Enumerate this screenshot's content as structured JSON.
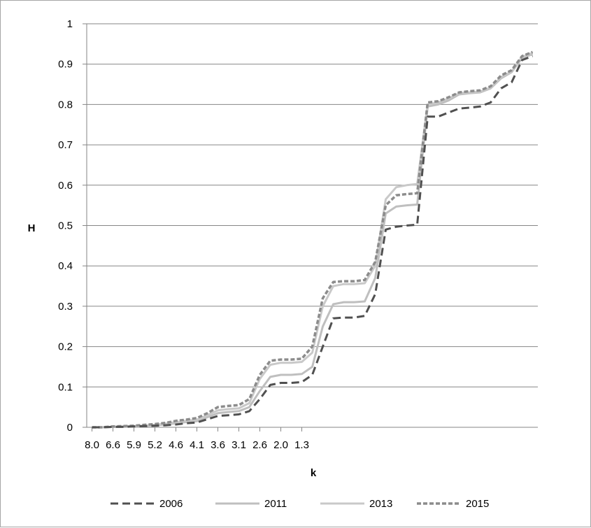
{
  "chart_data": {
    "type": "line",
    "xlabel": "k",
    "ylabel": "H",
    "ylim": [
      0,
      1
    ],
    "y_ticks": [
      "0",
      "0.1",
      "0.2",
      "0.3",
      "0.4",
      "0.5",
      "0.6",
      "0.7",
      "0.8",
      "0.9",
      "1"
    ],
    "x_tick_labels": [
      "8.0",
      "6.6",
      "5.9",
      "5.2",
      "4.6",
      "4.1",
      "3.6",
      "3.1",
      "2.6",
      "2.0",
      "1.3"
    ],
    "x_tick_every": 2,
    "grid": "horizontal",
    "legend_position": "bottom",
    "series": [
      {
        "name": "2006",
        "color": "#505050",
        "dash": "dash",
        "values": [
          0,
          0,
          0.001,
          0.001,
          0.002,
          0.003,
          0.004,
          0.005,
          0.007,
          0.01,
          0.012,
          0.02,
          0.028,
          0.03,
          0.032,
          0.04,
          0.07,
          0.105,
          0.11,
          0.11,
          0.112,
          0.13,
          0.2,
          0.27,
          0.272,
          0.272,
          0.276,
          0.33,
          0.49,
          0.497,
          0.5,
          0.502,
          0.77,
          0.77,
          0.78,
          0.79,
          0.792,
          0.795,
          0.805,
          0.84,
          0.855,
          0.91,
          0.92
        ]
      },
      {
        "name": "2011",
        "color": "#bfbfbf",
        "dash": "solid",
        "values": [
          0,
          0,
          0.001,
          0.001,
          0.002,
          0.003,
          0.005,
          0.007,
          0.01,
          0.013,
          0.015,
          0.025,
          0.035,
          0.038,
          0.04,
          0.05,
          0.09,
          0.125,
          0.13,
          0.13,
          0.132,
          0.15,
          0.25,
          0.305,
          0.31,
          0.31,
          0.312,
          0.37,
          0.53,
          0.547,
          0.55,
          0.552,
          0.795,
          0.8,
          0.81,
          0.825,
          0.828,
          0.83,
          0.84,
          0.865,
          0.88,
          0.915,
          0.925
        ]
      },
      {
        "name": "2013",
        "color": "#c9c9c9",
        "dash": "solid",
        "values": [
          0,
          0,
          0.001,
          0.002,
          0.003,
          0.004,
          0.006,
          0.009,
          0.013,
          0.016,
          0.019,
          0.03,
          0.042,
          0.045,
          0.047,
          0.06,
          0.12,
          0.155,
          0.16,
          0.16,
          0.162,
          0.185,
          0.3,
          0.35,
          0.355,
          0.355,
          0.357,
          0.4,
          0.565,
          0.595,
          0.6,
          0.603,
          0.8,
          0.805,
          0.815,
          0.828,
          0.83,
          0.832,
          0.842,
          0.868,
          0.882,
          0.918,
          0.928
        ]
      },
      {
        "name": "2015",
        "color": "#8c8c8c",
        "dash": "short-dash",
        "values": [
          0,
          0,
          0.002,
          0.003,
          0.004,
          0.006,
          0.008,
          0.011,
          0.016,
          0.019,
          0.023,
          0.035,
          0.05,
          0.053,
          0.055,
          0.07,
          0.13,
          0.165,
          0.168,
          0.168,
          0.17,
          0.2,
          0.32,
          0.36,
          0.362,
          0.362,
          0.365,
          0.41,
          0.55,
          0.575,
          0.578,
          0.58,
          0.805,
          0.808,
          0.818,
          0.83,
          0.833,
          0.835,
          0.845,
          0.872,
          0.885,
          0.92,
          0.93
        ]
      }
    ]
  }
}
